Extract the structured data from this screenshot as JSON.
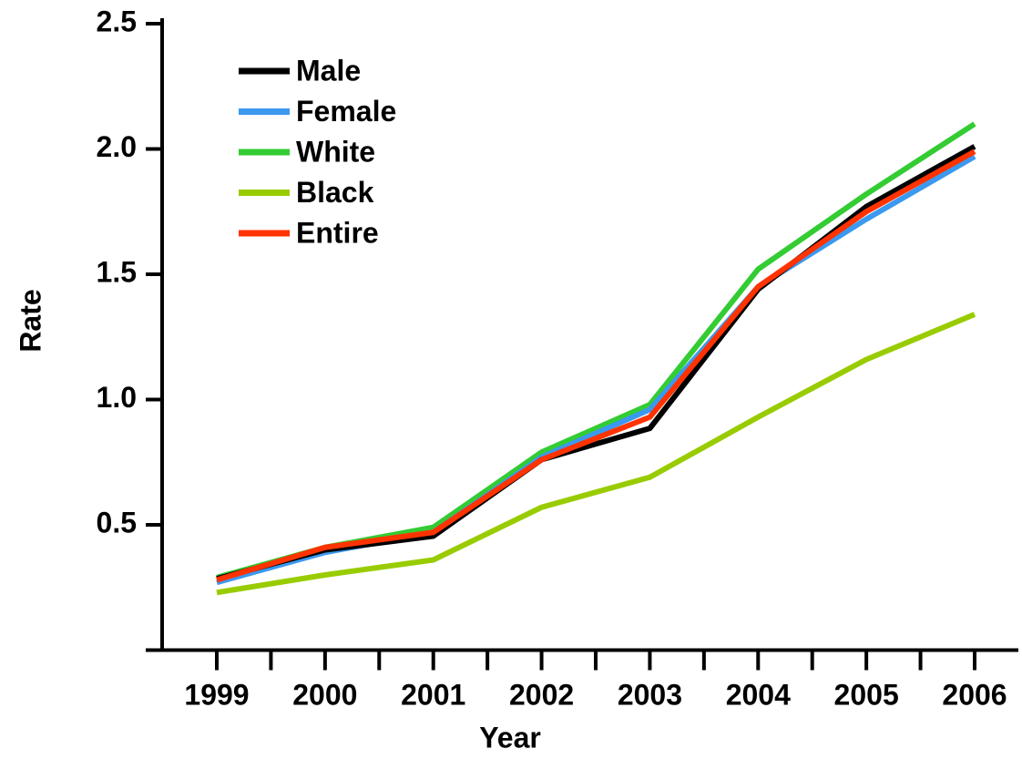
{
  "chart_data": {
    "type": "line",
    "x_label": "Year",
    "y_label": "Rate",
    "categories": [
      "1999",
      "2000",
      "2001",
      "2002",
      "2003",
      "2004",
      "2005",
      "2006"
    ],
    "series": [
      {
        "name": "Male",
        "color": "#000000",
        "values": [
          0.285,
          0.4,
          0.455,
          0.76,
          0.885,
          1.44,
          1.77,
          2.01
        ]
      },
      {
        "name": "Female",
        "color": "#3b99f0",
        "values": [
          0.27,
          0.39,
          0.47,
          0.77,
          0.96,
          1.45,
          1.72,
          1.97
        ]
      },
      {
        "name": "White",
        "color": "#33cc33",
        "values": [
          0.29,
          0.41,
          0.49,
          0.79,
          0.98,
          1.52,
          1.82,
          2.1
        ]
      },
      {
        "name": "Black",
        "color": "#99cc00",
        "values": [
          0.23,
          0.3,
          0.36,
          0.57,
          0.69,
          0.93,
          1.16,
          1.34
        ]
      },
      {
        "name": "Entire",
        "color": "#ff3300",
        "values": [
          0.28,
          0.41,
          0.47,
          0.76,
          0.93,
          1.45,
          1.75,
          1.99
        ]
      }
    ],
    "ylim": [
      0,
      2.5
    ],
    "yticks": [
      {
        "value": 0.5,
        "label": "0.5"
      },
      {
        "value": 1,
        "label": "1.0"
      },
      {
        "value": 1.5,
        "label": "1.5"
      },
      {
        "value": 2,
        "label": "2.0"
      },
      {
        "value": 2.5,
        "label": "2.5"
      }
    ],
    "legend": "upper-left",
    "grid": false
  }
}
